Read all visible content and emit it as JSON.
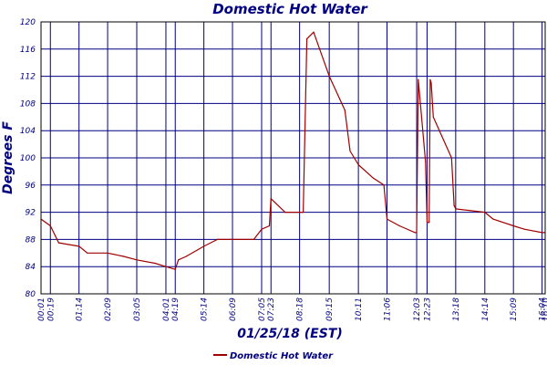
{
  "chart_data": {
    "type": "line",
    "title": "Domestic Hot Water",
    "xlabel": "01/25/18 (EST)",
    "ylabel": "Degrees F",
    "ylim": [
      80,
      120
    ],
    "yticks": [
      80,
      84,
      88,
      92,
      96,
      100,
      104,
      108,
      112,
      116,
      120
    ],
    "xlim": [
      "00:01",
      "16:10"
    ],
    "xticks": [
      "00:01",
      "00:19",
      "01:14",
      "02:09",
      "03:05",
      "04:01",
      "04:19",
      "05:14",
      "06:09",
      "07:05",
      "07:23",
      "08:18",
      "09:15",
      "10:11",
      "11:06",
      "12:03",
      "12:23",
      "13:18",
      "14:14",
      "15:09",
      "16:04",
      "16:10"
    ],
    "grid": true,
    "legend": {
      "position": "bottom-center",
      "entries": [
        "Domestic Hot Water"
      ]
    },
    "colors": {
      "series": "#a00000",
      "grid": "#000080",
      "text": "#000080",
      "frame": "#000000"
    },
    "series": [
      {
        "name": "Domestic Hot Water",
        "x": [
          "00:01",
          "00:19",
          "00:35",
          "01:14",
          "01:30",
          "02:09",
          "02:40",
          "03:05",
          "03:40",
          "04:01",
          "04:19",
          "04:25",
          "04:40",
          "05:14",
          "05:40",
          "06:09",
          "06:50",
          "07:05",
          "07:20",
          "07:23",
          "07:50",
          "08:18",
          "08:25",
          "08:32",
          "08:45",
          "09:15",
          "09:45",
          "09:55",
          "10:11",
          "10:40",
          "11:00",
          "11:06",
          "11:30",
          "12:00",
          "12:03",
          "12:06",
          "12:20",
          "12:23",
          "12:27",
          "12:29",
          "12:31",
          "12:35",
          "13:10",
          "13:15",
          "13:18",
          "14:14",
          "14:30",
          "15:09",
          "15:30",
          "16:04",
          "16:10"
        ],
        "values": [
          91,
          90,
          87.5,
          87,
          86,
          86,
          85.5,
          85,
          84.5,
          84,
          83.6,
          85,
          85.5,
          87,
          88,
          88,
          88,
          89.5,
          90,
          94,
          92,
          92,
          92,
          117.5,
          118.5,
          112,
          107,
          101,
          99,
          97,
          96,
          91,
          90,
          89,
          89,
          111.5,
          99.5,
          90.5,
          90.5,
          111.5,
          111,
          106,
          100,
          93,
          92.5,
          92,
          91,
          90,
          89.5,
          89,
          89
        ]
      }
    ]
  }
}
